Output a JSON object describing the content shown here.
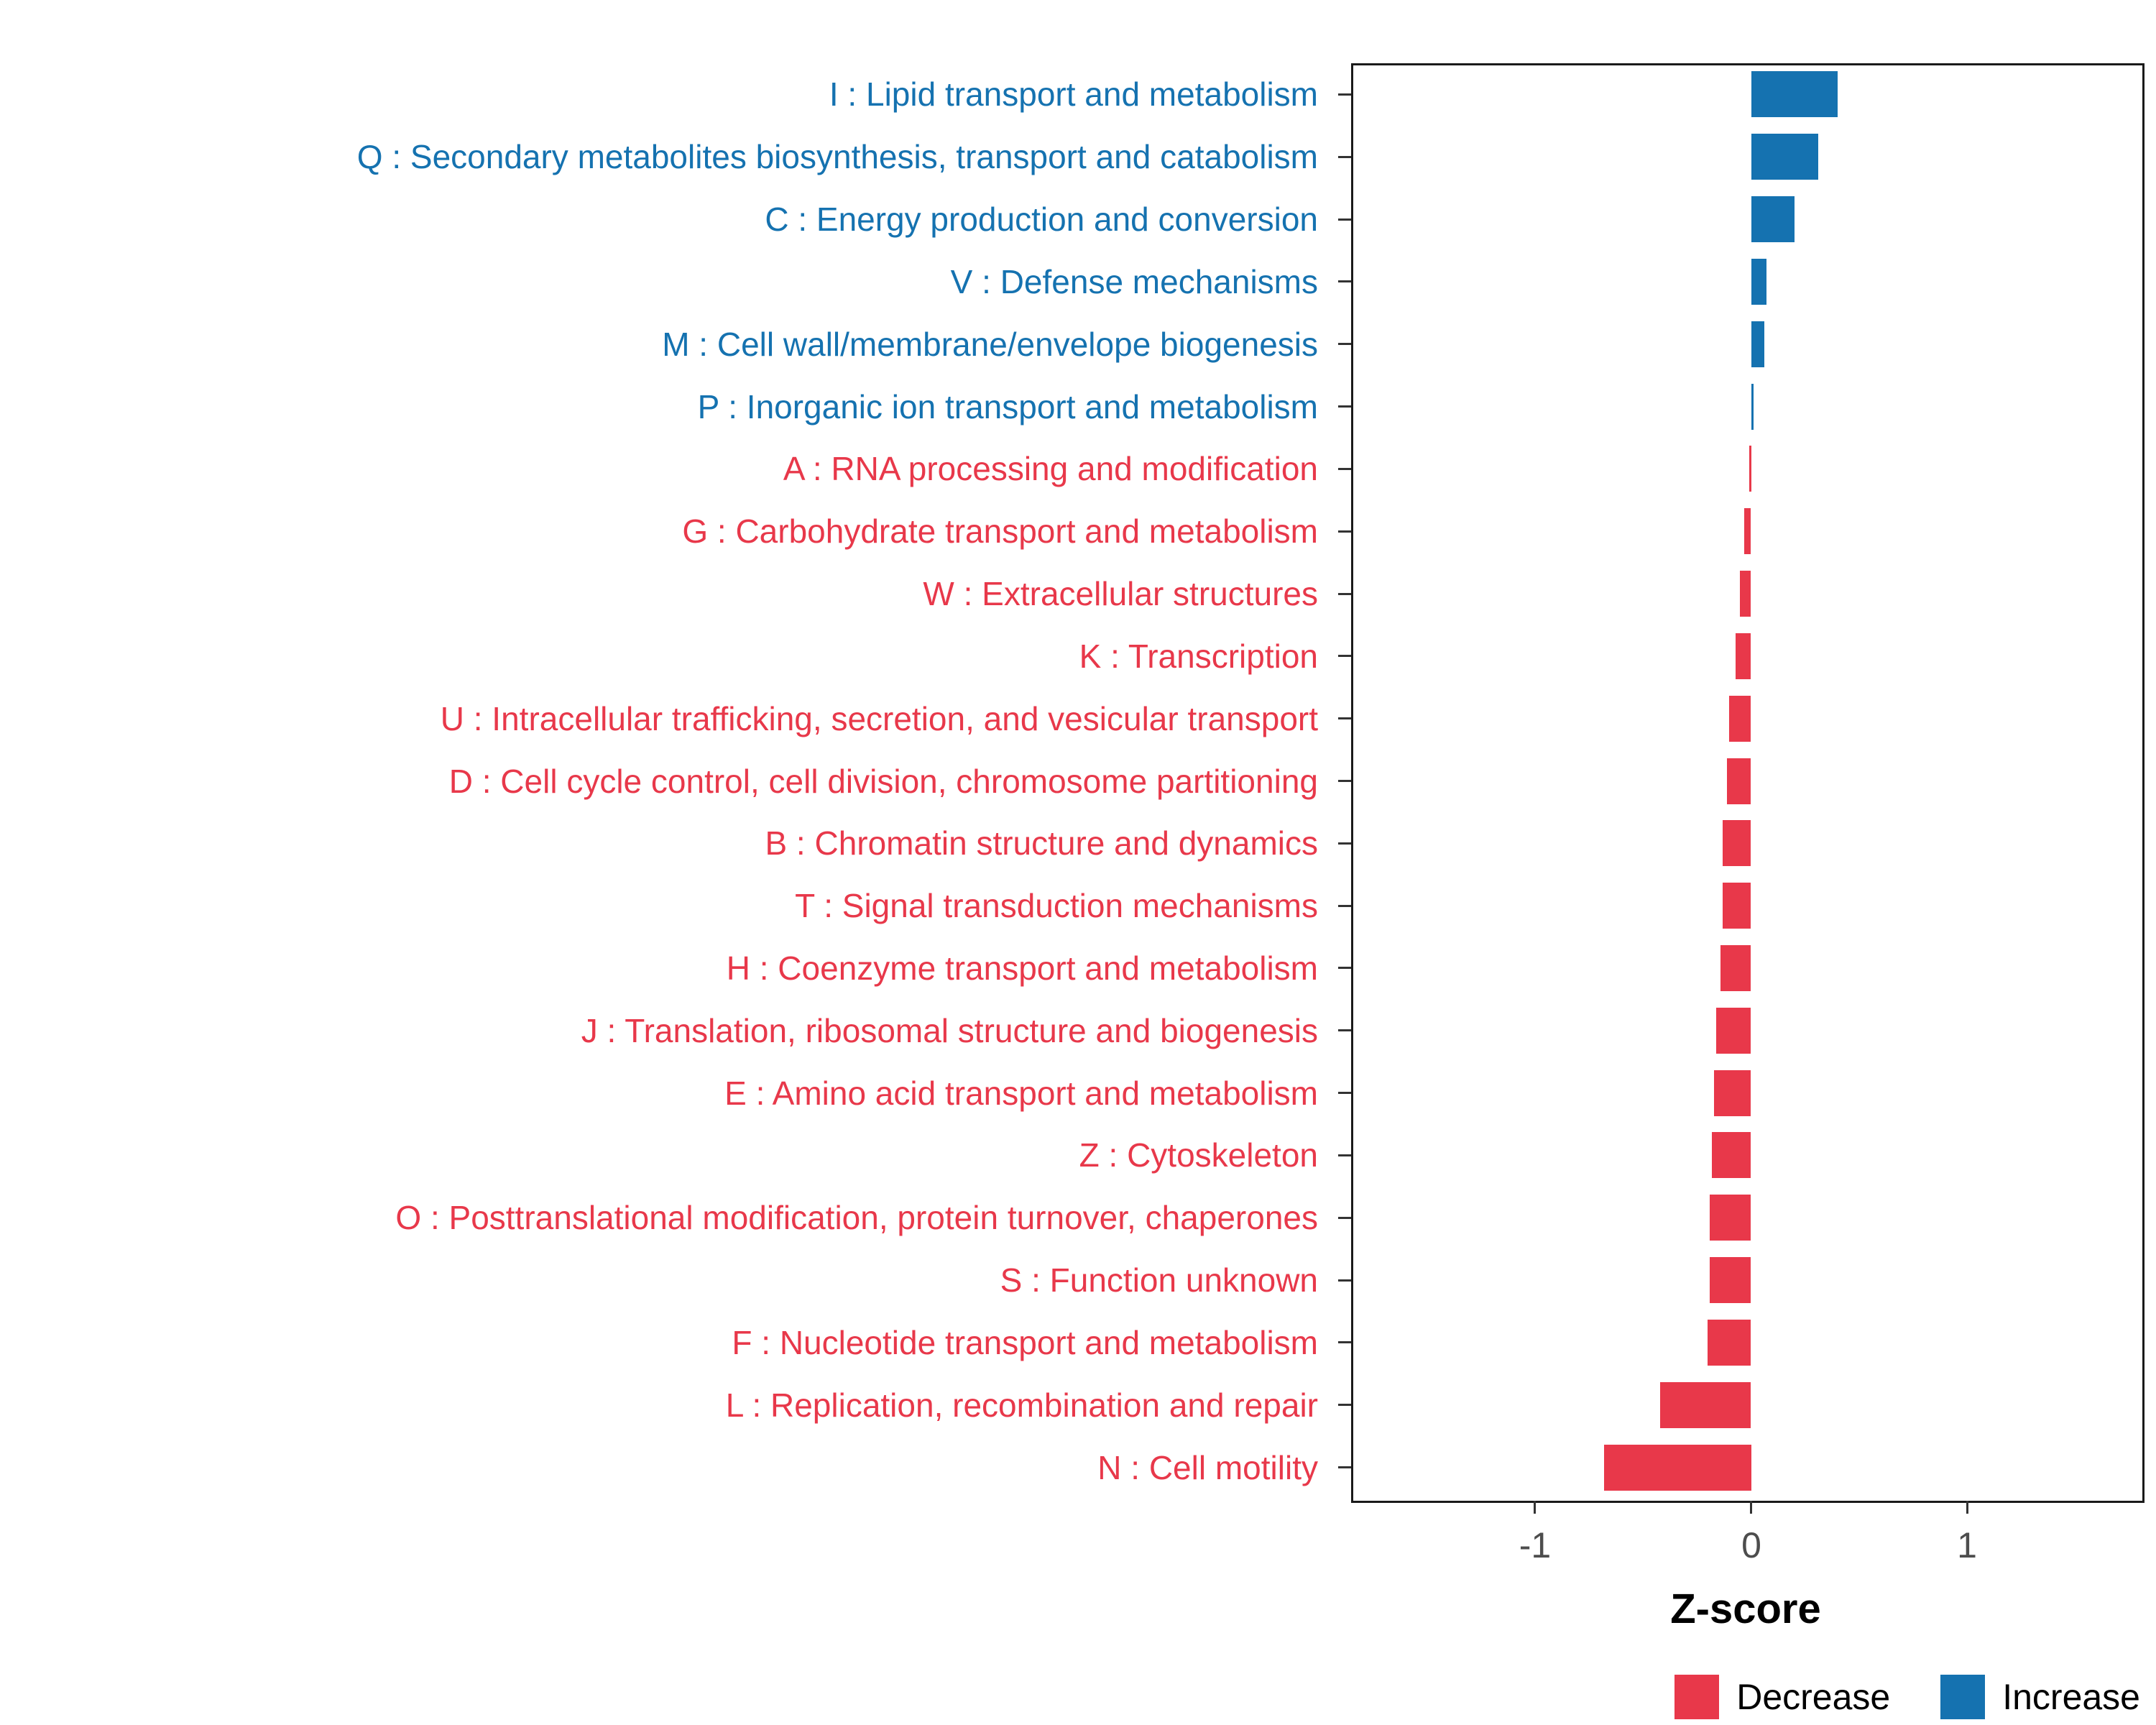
{
  "chart_data": {
    "type": "bar",
    "orientation": "horizontal",
    "title": "",
    "xlabel": "Z-score",
    "xlim": [
      -1.85,
      1.8
    ],
    "x_ticks": [
      -1,
      0,
      1
    ],
    "grid": false,
    "legend_position": "bottom-right",
    "colors": {
      "decrease": "#E8384A",
      "increase": "#1572B0"
    },
    "legend": [
      {
        "label": "Decrease",
        "key": "decrease"
      },
      {
        "label": "Increase",
        "key": "increase"
      }
    ],
    "categories": [
      {
        "label": "I : Lipid transport and metabolism",
        "value": 0.4,
        "change": "increase"
      },
      {
        "label": "Q : Secondary metabolites biosynthesis, transport and catabolism",
        "value": 0.31,
        "change": "increase"
      },
      {
        "label": "C : Energy production and conversion",
        "value": 0.2,
        "change": "increase"
      },
      {
        "label": "V : Defense mechanisms",
        "value": 0.07,
        "change": "increase"
      },
      {
        "label": "M : Cell wall/membrane/envelope biogenesis",
        "value": 0.06,
        "change": "increase"
      },
      {
        "label": "P : Inorganic ion transport and metabolism",
        "value": 0.01,
        "change": "increase"
      },
      {
        "label": "A : RNA processing and modification",
        "value": -0.01,
        "change": "decrease"
      },
      {
        "label": "G : Carbohydrate transport and metabolism",
        "value": -0.03,
        "change": "decrease"
      },
      {
        "label": "W : Extracellular structures",
        "value": -0.05,
        "change": "decrease"
      },
      {
        "label": "K : Transcription",
        "value": -0.07,
        "change": "decrease"
      },
      {
        "label": "U : Intracellular trafficking, secretion, and vesicular transport",
        "value": -0.1,
        "change": "decrease"
      },
      {
        "label": "D : Cell cycle control, cell division, chromosome partitioning",
        "value": -0.11,
        "change": "decrease"
      },
      {
        "label": "B : Chromatin structure and dynamics",
        "value": -0.13,
        "change": "decrease"
      },
      {
        "label": "T : Signal transduction mechanisms",
        "value": -0.13,
        "change": "decrease"
      },
      {
        "label": "H : Coenzyme transport and metabolism",
        "value": -0.14,
        "change": "decrease"
      },
      {
        "label": "J : Translation, ribosomal structure and biogenesis",
        "value": -0.16,
        "change": "decrease"
      },
      {
        "label": "E : Amino acid transport and metabolism",
        "value": -0.17,
        "change": "decrease"
      },
      {
        "label": "Z : Cytoskeleton",
        "value": -0.18,
        "change": "decrease"
      },
      {
        "label": "O : Posttranslational modification, protein turnover, chaperones",
        "value": -0.19,
        "change": "decrease"
      },
      {
        "label": "S : Function unknown",
        "value": -0.19,
        "change": "decrease"
      },
      {
        "label": "F : Nucleotide transport and metabolism",
        "value": -0.2,
        "change": "decrease"
      },
      {
        "label": "L : Replication, recombination and repair",
        "value": -0.42,
        "change": "decrease"
      },
      {
        "label": "N : Cell motility",
        "value": -0.68,
        "change": "decrease"
      }
    ]
  }
}
